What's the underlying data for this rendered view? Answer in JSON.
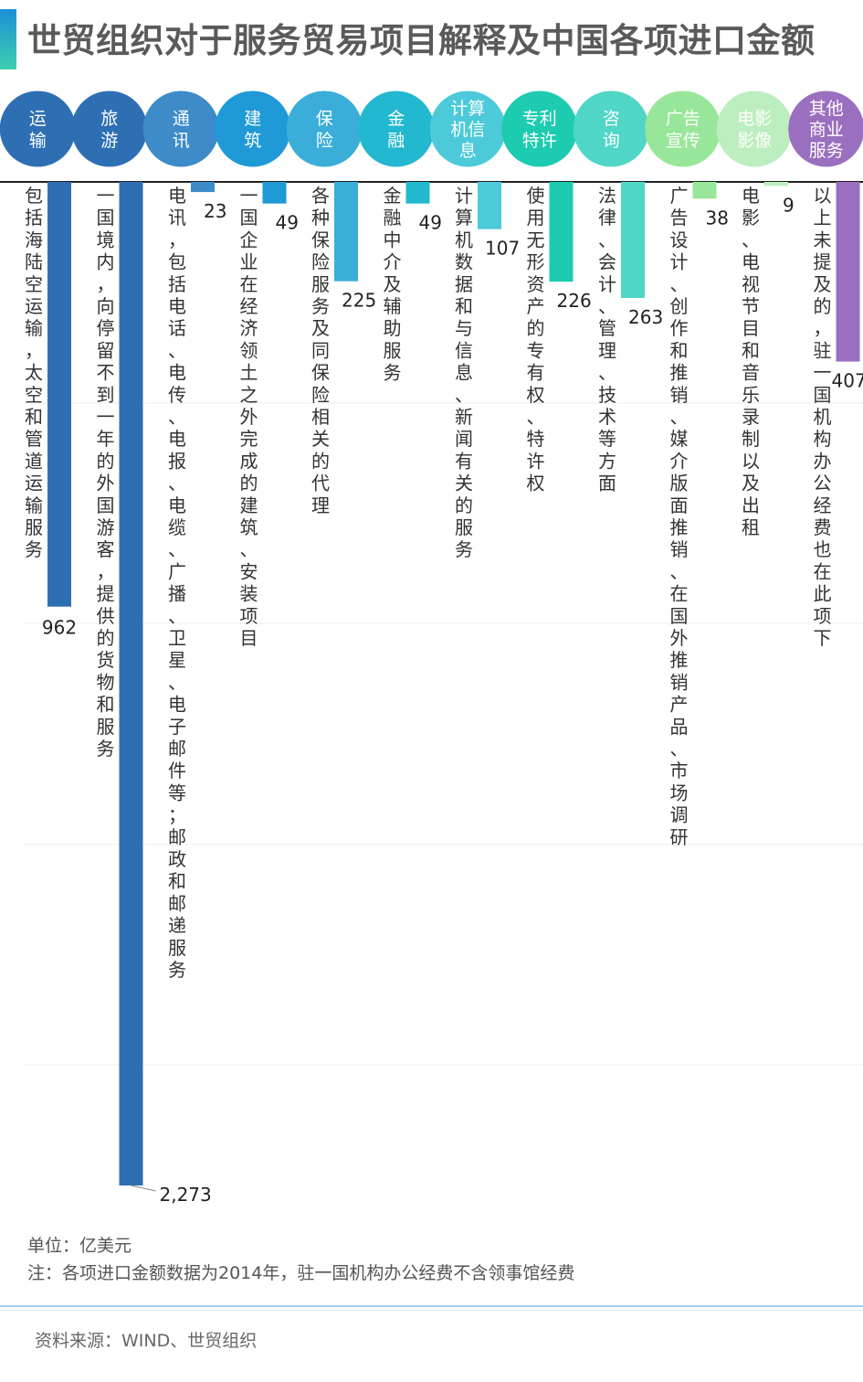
{
  "title": "世贸组织对于服务贸易项目解释及中国各项进口金额",
  "unit": "单位：亿美元",
  "note": "注：各项进口金额数据为2014年，驻一国机构办公经费不含领事馆经费",
  "source": "资料来源：WIND、世贸组织",
  "chart_data": {
    "type": "bar",
    "orientation": "vertical-down",
    "categories": [
      "运输",
      "旅游",
      "通讯",
      "建筑",
      "保险",
      "金融",
      "计算机信息",
      "专利特许",
      "咨询",
      "广告宣传",
      "电影影像",
      "其他商业服务"
    ],
    "category_labels": [
      [
        "运",
        "输"
      ],
      [
        "旅",
        "游"
      ],
      [
        "通",
        "讯"
      ],
      [
        "建",
        "筑"
      ],
      [
        "保",
        "险"
      ],
      [
        "金",
        "融"
      ],
      [
        "计算",
        "机信",
        "息"
      ],
      [
        "专利",
        "特许"
      ],
      [
        "咨",
        "询"
      ],
      [
        "广告",
        "宣传"
      ],
      [
        "电影",
        "影像"
      ],
      [
        "其他",
        "商业",
        "服务"
      ]
    ],
    "values": [
      962,
      2273,
      23,
      49,
      225,
      49,
      107,
      226,
      263,
      38,
      9,
      407
    ],
    "value_labels": [
      "962",
      "2,273",
      "23",
      "49",
      "225",
      "49",
      "107",
      "226",
      "263",
      "38",
      "9",
      "407"
    ],
    "descriptions": [
      "包括海陆空运输，太空和管道运输服务",
      "一国境内，向停留不到一年的外国游客，提供的货物和服务",
      "电讯，包括电话、电传、电报、电缆、广播、卫星、电子邮件等；邮政和邮递服务",
      "一国企业在经济领土之外完成的建筑、安装项目",
      "各种保险服务及同保险相关的代理",
      "金融中介及辅助服务",
      "计算机数据和与信息、新闻有关的服务",
      "使用无形资产的专有权、特许权",
      "法律、会计、管理、技术等方面",
      "广告设计、创作和推销、媒介版面推销、在国外推销产品、市场调研",
      "电影、电视节目和音乐录制以及出租",
      "以上未提及的，驻一国机构办公经费也在此项下"
    ],
    "colors": [
      "#2e6fb4",
      "#2e6fb4",
      "#3d8bc9",
      "#1f9ad6",
      "#3aaed8",
      "#22b8cf",
      "#4ccad9",
      "#1ccbb0",
      "#4fd6c6",
      "#98e69a",
      "#bdeebf",
      "#9a6fbf"
    ],
    "ylim": [
      0,
      2273
    ],
    "grid": true
  }
}
